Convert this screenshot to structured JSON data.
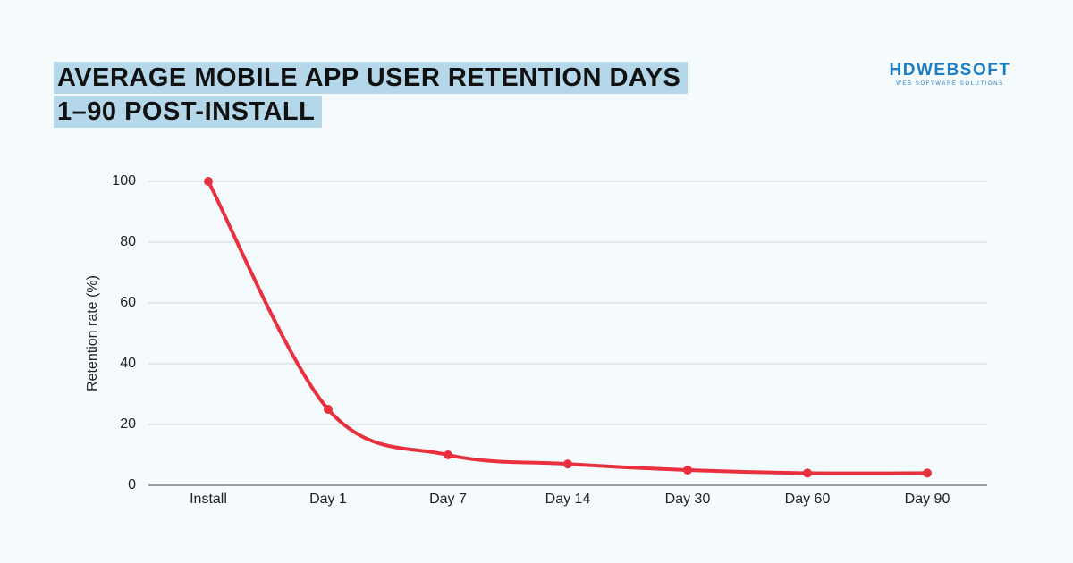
{
  "chart_data": {
    "type": "line",
    "title": "AVERAGE MOBILE APP USER RETENTION DAYS 1–90 POST-INSTALL",
    "logo": "HDWEBSOFT",
    "logo_tagline": "WEB SOFTWARE SOLUTIONS",
    "y_label": "Retention rate (%)",
    "categories": [
      "Install",
      "Day 1",
      "Day 7",
      "Day 14",
      "Day 30",
      "Day 60",
      "Day 90"
    ],
    "values": [
      100,
      25,
      10,
      7,
      5,
      4,
      4
    ],
    "color": "#e8303f",
    "ylim": [
      0,
      100
    ],
    "yticks": [
      0,
      20,
      40,
      60,
      80,
      100
    ],
    "grid": true
  }
}
